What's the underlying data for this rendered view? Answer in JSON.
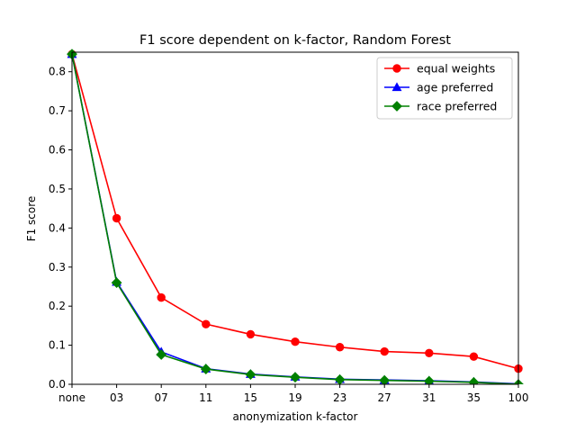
{
  "chart_data": {
    "type": "line",
    "title": "F1 score dependent on k-factor, Random Forest",
    "xlabel": "anonymization k-factor",
    "ylabel": "F1 score",
    "categories": [
      "none",
      "03",
      "07",
      "11",
      "15",
      "19",
      "23",
      "27",
      "31",
      "35",
      "100"
    ],
    "ylim": [
      0,
      0.85
    ],
    "yticks": [
      0.0,
      0.1,
      0.2,
      0.3,
      0.4,
      0.5,
      0.6,
      0.7,
      0.8
    ],
    "ytick_labels": [
      "0.0",
      "0.1",
      "0.2",
      "0.3",
      "0.4",
      "0.5",
      "0.6",
      "0.7",
      "0.8"
    ],
    "grid": false,
    "legend_position": "top-right",
    "series": [
      {
        "name": "equal weights",
        "color": "#ff0000",
        "marker": "circle",
        "values": [
          0.845,
          0.425,
          0.222,
          0.154,
          0.128,
          0.109,
          0.095,
          0.084,
          0.08,
          0.071,
          0.04
        ]
      },
      {
        "name": "age preferred",
        "color": "#0000ff",
        "marker": "triangle",
        "values": [
          0.845,
          0.262,
          0.083,
          0.04,
          0.026,
          0.019,
          0.013,
          0.011,
          0.009,
          0.006,
          0.001
        ]
      },
      {
        "name": "race preferred",
        "color": "#008000",
        "marker": "diamond",
        "values": [
          0.845,
          0.26,
          0.076,
          0.039,
          0.025,
          0.018,
          0.012,
          0.01,
          0.008,
          0.005,
          0.0
        ]
      }
    ]
  }
}
